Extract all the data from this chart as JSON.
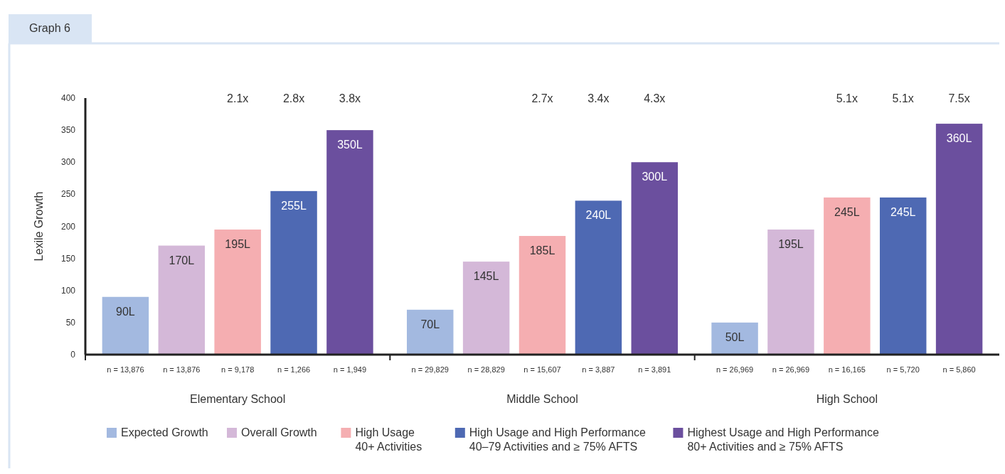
{
  "chart_data": {
    "type": "bar",
    "title": "Graph 6",
    "ylabel": "Lexile Growth",
    "categories": [
      "Elementary School",
      "Middle School",
      "High School"
    ],
    "series": [
      {
        "name": "Expected Growth",
        "color": "#a3b9e0",
        "values": [
          90,
          70,
          50
        ],
        "value_labels": [
          "90L",
          "70L",
          "50L"
        ]
      },
      {
        "name": "Overall Growth",
        "color": "#d4b8d8",
        "values": [
          170,
          145,
          195
        ],
        "value_labels": [
          "170L",
          "145L",
          "195L"
        ]
      },
      {
        "name": "High Usage\n40+ Activities",
        "color": "#f5aeb1",
        "values": [
          195,
          185,
          245
        ],
        "value_labels": [
          "195L",
          "185L",
          "245L"
        ]
      },
      {
        "name": "High Usage and High Performance\n40–79 Activities and ≥ 75% AFTS",
        "color": "#4e69b3",
        "values": [
          255,
          240,
          245
        ],
        "value_labels": [
          "255L",
          "240L",
          "245L"
        ]
      },
      {
        "name": "Highest Usage and High Performance\n80+ Activities and ≥ 75% AFTS",
        "color": "#6b4f9e",
        "values": [
          350,
          300,
          360
        ],
        "value_labels": [
          "350L",
          "300L",
          "360L"
        ]
      }
    ],
    "ylim": [
      0,
      400
    ],
    "yticks": [
      0,
      50,
      100,
      150,
      200,
      250,
      300,
      350,
      400
    ],
    "grid": false,
    "legend": "bottom",
    "annotations": [
      "n = 13,876",
      "n = 13,876",
      "n = 9,178",
      "n = 1,266",
      "n = 1,949",
      "n = 29,829",
      "n = 28,829",
      "n = 15,607",
      "n = 3,887",
      "n = 3,891",
      "n = 26,969",
      "n = 26,969",
      "n = 16,165",
      "n = 5,720",
      "n = 5,860",
      "2.1x",
      "2.8x",
      "3.8x",
      "2.7x",
      "3.4x",
      "4.3x",
      "5.1x",
      "5.1x",
      "7.5x"
    ]
  }
}
